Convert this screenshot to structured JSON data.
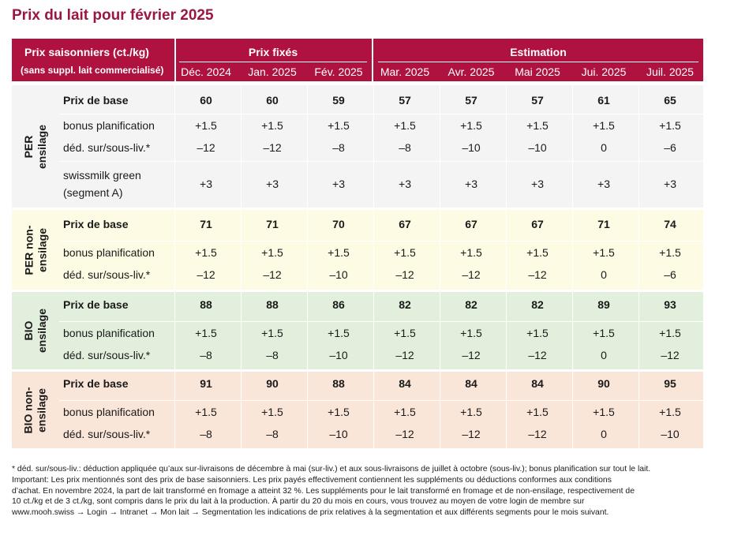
{
  "title": "Prix du lait pour février 2025",
  "header": {
    "left_title": "Prix saisonniers (ct./kg)",
    "left_sub": "(sans suppl. lait commercialisé)",
    "group_fixed": "Prix fixés",
    "group_est": "Estimation",
    "months": [
      "Déc. 2024",
      "Jan. 2025",
      "Fév. 2025",
      "Mar. 2025",
      "Avr. 2025",
      "Mai 2025",
      "Jui. 2025",
      "Juil. 2025"
    ]
  },
  "sections": [
    {
      "label_lines": [
        "PER",
        "ensilage"
      ],
      "color": "#f4f4f4",
      "rows": [
        {
          "label": "Prix de base",
          "bold": true,
          "values": [
            "60",
            "60",
            "59",
            "57",
            "57",
            "57",
            "61",
            "65"
          ]
        },
        {
          "label": "bonus planification",
          "bold": false,
          "values": [
            "+1.5",
            "+1.5",
            "+1.5",
            "+1.5",
            "+1.5",
            "+1.5",
            "+1.5",
            "+1.5"
          ]
        },
        {
          "label": "déd. sur/sous-liv.*",
          "bold": false,
          "values": [
            "–12",
            "–12",
            "–8",
            "–8",
            "–10",
            "–10",
            "0",
            "–6"
          ]
        },
        {
          "label": "swissmilk green",
          "label2": "(segment A)",
          "bold": false,
          "values": [
            "+3",
            "+3",
            "+3",
            "+3",
            "+3",
            "+3",
            "+3",
            "+3"
          ]
        }
      ]
    },
    {
      "label_lines": [
        "PER non-",
        "ensilage"
      ],
      "color": "#fdfbe3",
      "rows": [
        {
          "label": "Prix de base",
          "bold": true,
          "values": [
            "71",
            "71",
            "70",
            "67",
            "67",
            "67",
            "71",
            "74"
          ]
        },
        {
          "label": "bonus planification",
          "bold": false,
          "values": [
            "+1.5",
            "+1.5",
            "+1.5",
            "+1.5",
            "+1.5",
            "+1.5",
            "+1.5",
            "+1.5"
          ]
        },
        {
          "label": "déd. sur/sous-liv.*",
          "bold": false,
          "values": [
            "–12",
            "–12",
            "–10",
            "–12",
            "–12",
            "–12",
            "0",
            "–6"
          ]
        }
      ]
    },
    {
      "label_lines": [
        "BIO",
        "ensilage"
      ],
      "color": "#e2efdc",
      "rows": [
        {
          "label": "Prix de base",
          "bold": true,
          "values": [
            "88",
            "88",
            "86",
            "82",
            "82",
            "82",
            "89",
            "93"
          ]
        },
        {
          "label": "bonus planification",
          "bold": false,
          "values": [
            "+1.5",
            "+1.5",
            "+1.5",
            "+1.5",
            "+1.5",
            "+1.5",
            "+1.5",
            "+1.5"
          ]
        },
        {
          "label": "déd. sur/sous-liv.*",
          "bold": false,
          "values": [
            "–8",
            "–8",
            "–10",
            "–12",
            "–12",
            "–12",
            "0",
            "–12"
          ]
        }
      ]
    },
    {
      "label_lines": [
        "BIO non-",
        "ensilage"
      ],
      "color": "#fae5d9",
      "rows": [
        {
          "label": "Prix de base",
          "bold": true,
          "values": [
            "91",
            "90",
            "88",
            "84",
            "84",
            "84",
            "90",
            "95"
          ]
        },
        {
          "label": "bonus planification",
          "bold": false,
          "values": [
            "+1.5",
            "+1.5",
            "+1.5",
            "+1.5",
            "+1.5",
            "+1.5",
            "+1.5",
            "+1.5"
          ]
        },
        {
          "label": "déd. sur/sous-liv.*",
          "bold": false,
          "values": [
            "–8",
            "–8",
            "–10",
            "–12",
            "–12",
            "–12",
            "0",
            "–10"
          ]
        }
      ]
    }
  ],
  "footnote": [
    "* déd. sur/sous-liv.: déduction appliquée qu’aux sur-livraisons de décembre à mai (sur-liv.) et aux sous-livraisons de juillet à octobre (sous-liv.); bonus planification sur tout le lait.",
    "Important: Les prix mentionnés sont des prix de base saisonniers. Les prix payés effectivement contiennent les suppléments ou déductions conformes aux conditions",
    "d’achat. En novembre 2024, la part de lait transformé en fromage a atteint 32 %. Les suppléments pour le lait transformé en fromage et de non-ensilage, respectivement de",
    "10 ct./kg et de 3 ct./kg, sont compris dans le prix du lait à la production. À partir du 20 du mois en cours, vous trouvez au moyen de votre login de membre sur",
    "www.mooh.swiss → Login → Intranet → Mon lait → Segmentation les indications de prix relatives à la segmentation et aux différents segments pour le mois suivant."
  ]
}
